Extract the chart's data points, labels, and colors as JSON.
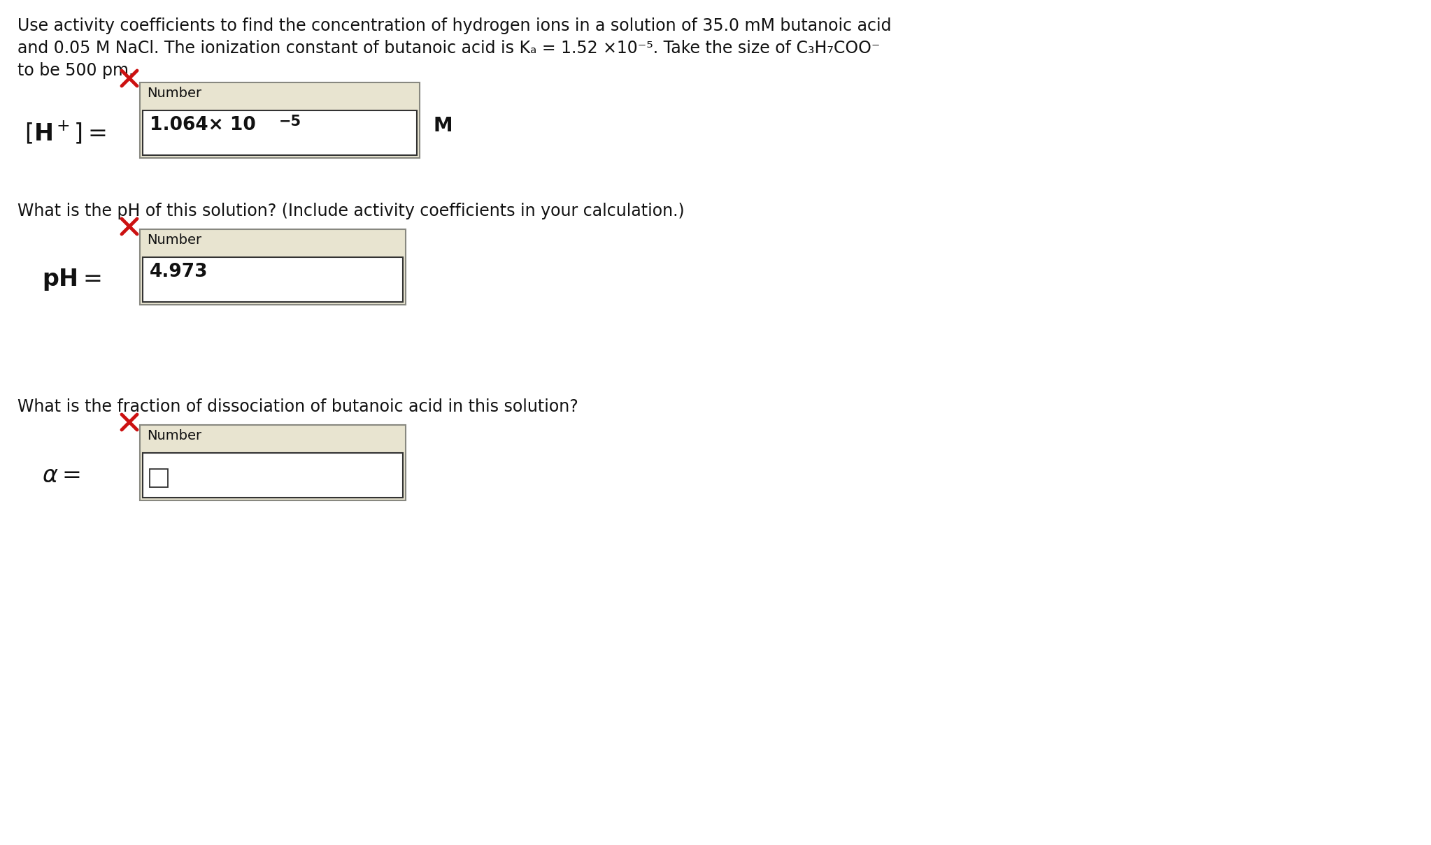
{
  "background_color": "#ffffff",
  "line1": "Use activity coefficients to find the concentration of hydrogen ions in a solution of 35.0 mM butanoic acid",
  "line2": "and 0.05 M NaCl. The ionization constant of butanoic acid is Kₐ = 1.52 ×10⁻⁵. Take the size of C₃H₇COO⁻",
  "line3": "to be 500 pm.",
  "q1_text": "What is the pH of this solution? (Include activity coefficients in your calculation.)",
  "q2_text": "What is the fraction of dissociation of butanoic acid in this solution?",
  "label1_bracket_open": "[",
  "label1_H": "H",
  "label1_plus": "+",
  "label1_bracket_close": "]",
  "label1_eq": "=",
  "label2": "pH =",
  "label3": "α=",
  "unit1": "M",
  "box1_header": "Number",
  "box1_value_main": "1.064× 10",
  "box1_value_exp": "−5",
  "box2_header": "Number",
  "box2_value": "4.973",
  "box3_header": "Number",
  "box_bg_color": "#e8e4d0",
  "inner_box_bg": "#ffffff",
  "box_border_color": "#888880",
  "inner_border_color": "#333333",
  "text_color": "#111111",
  "red_x_color": "#cc1111",
  "font_size_body": 17,
  "font_size_header": 14,
  "font_size_value": 19,
  "font_size_label_large": 22,
  "font_size_unit": 20
}
